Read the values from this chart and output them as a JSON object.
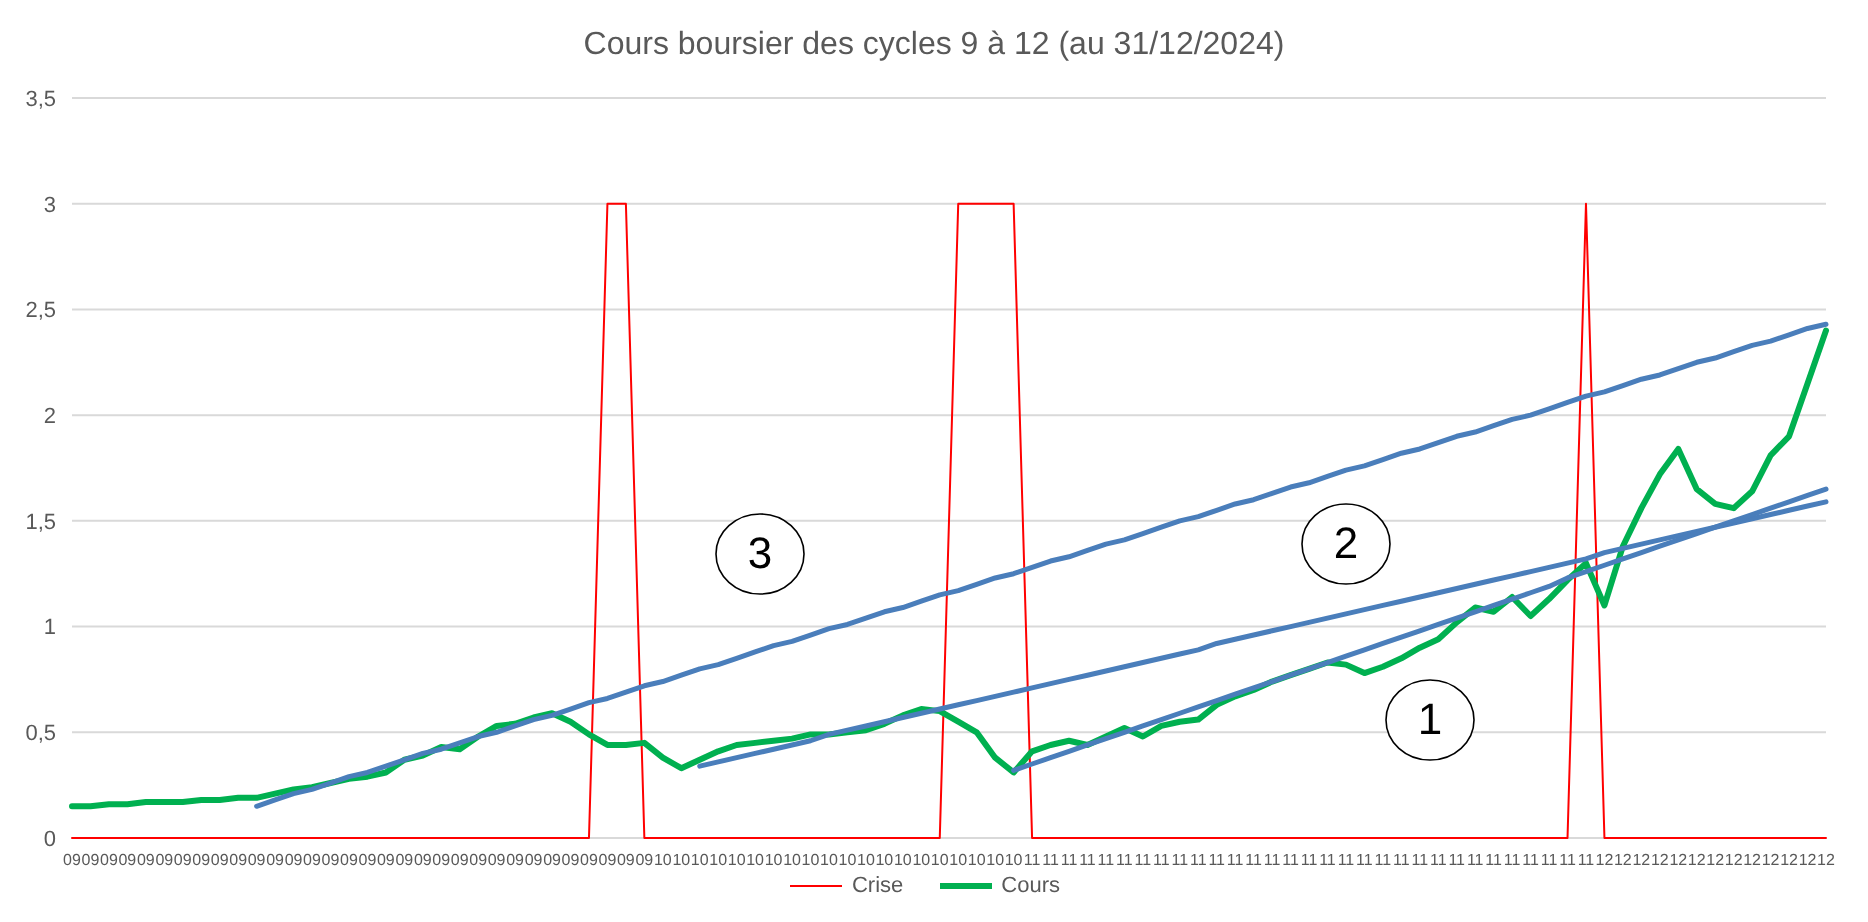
{
  "chart_data": {
    "type": "line",
    "title": "Cours boursier des cycles 9 à 12 (au 31/12/2024)",
    "categories": [
      "09",
      "09",
      "09",
      "09",
      "09",
      "09",
      "09",
      "09",
      "09",
      "09",
      "09",
      "09",
      "09",
      "09",
      "09",
      "09",
      "09",
      "09",
      "09",
      "09",
      "09",
      "09",
      "09",
      "09",
      "09",
      "09",
      "09",
      "09",
      "09",
      "09",
      "09",
      "09",
      "10",
      "10",
      "10",
      "10",
      "10",
      "10",
      "10",
      "10",
      "10",
      "10",
      "10",
      "10",
      "10",
      "10",
      "10",
      "10",
      "10",
      "10",
      "10",
      "10",
      "11",
      "11",
      "11",
      "11",
      "11",
      "11",
      "11",
      "11",
      "11",
      "11",
      "11",
      "11",
      "11",
      "11",
      "11",
      "11",
      "11",
      "11",
      "11",
      "11",
      "11",
      "11",
      "11",
      "11",
      "11",
      "11",
      "11",
      "11",
      "11",
      "11",
      "11",
      "12",
      "12",
      "12",
      "12",
      "12",
      "12",
      "12",
      "12",
      "12",
      "12",
      "12",
      "12",
      "12"
    ],
    "ylim": [
      0,
      3.5
    ],
    "yticks": [
      0,
      {
        "value": 0.5,
        "label": "0,5"
      },
      1,
      {
        "value": 1.5,
        "label": "1,5"
      },
      2,
      {
        "value": 2.5,
        "label": "2,5"
      },
      3,
      {
        "value": 3.5,
        "label": "3,5"
      }
    ],
    "grid": "y",
    "legend": "bottom",
    "marker": "none",
    "line_style": "solid",
    "series": [
      {
        "name": "Crise",
        "color": "#ff0000",
        "values": [
          0,
          0,
          0,
          0,
          0,
          0,
          0,
          0,
          0,
          0,
          0,
          0,
          0,
          0,
          0,
          0,
          0,
          0,
          0,
          0,
          0,
          0,
          0,
          0,
          0,
          0,
          0,
          0,
          0,
          3,
          3,
          0,
          0,
          0,
          0,
          0,
          0,
          0,
          0,
          0,
          0,
          0,
          0,
          0,
          0,
          0,
          0,
          0,
          3,
          3,
          3,
          3,
          0,
          0,
          0,
          0,
          0,
          0,
          0,
          0,
          0,
          0,
          0,
          0,
          0,
          0,
          0,
          0,
          0,
          0,
          0,
          0,
          0,
          0,
          0,
          0,
          0,
          0,
          0,
          0,
          0,
          0,
          3,
          0,
          0,
          0,
          0,
          0,
          0,
          0,
          0,
          0,
          0,
          0,
          0,
          0
        ]
      },
      {
        "name": "Cours",
        "color": "#00b050",
        "values": [
          0.15,
          0.15,
          0.16,
          0.16,
          0.17,
          0.17,
          0.17,
          0.18,
          0.18,
          0.19,
          0.19,
          0.21,
          0.23,
          0.24,
          0.26,
          0.28,
          0.29,
          0.31,
          0.37,
          0.39,
          0.43,
          0.42,
          0.48,
          0.53,
          0.54,
          0.57,
          0.59,
          0.55,
          0.49,
          0.44,
          0.44,
          0.45,
          0.38,
          0.33,
          0.37,
          0.41,
          0.44,
          0.45,
          0.46,
          0.47,
          0.49,
          0.49,
          0.5,
          0.51,
          0.54,
          0.58,
          0.61,
          0.6,
          0.55,
          0.5,
          0.38,
          0.31,
          0.41,
          0.44,
          0.46,
          0.44,
          0.48,
          0.52,
          0.48,
          0.53,
          0.55,
          0.56,
          0.63,
          0.67,
          0.7,
          0.74,
          0.77,
          0.8,
          0.83,
          0.82,
          0.78,
          0.81,
          0.85,
          0.9,
          0.94,
          1.02,
          1.09,
          1.07,
          1.14,
          1.05,
          1.13,
          1.22,
          1.3,
          1.1,
          1.38,
          1.56,
          1.72,
          1.84,
          1.65,
          1.58,
          1.56,
          1.64,
          1.81,
          1.9,
          2.15,
          2.4
        ]
      },
      {
        "color": "#4a7ebb",
        "values": [
          null,
          null,
          null,
          null,
          null,
          null,
          null,
          null,
          null,
          null,
          0.15,
          0.18,
          0.21,
          0.23,
          0.26,
          0.29,
          0.31,
          0.34,
          0.37,
          0.4,
          0.42,
          0.45,
          0.48,
          0.5,
          0.53,
          0.56,
          0.58,
          0.61,
          0.64,
          0.66,
          0.69,
          0.72,
          0.74,
          0.77,
          0.8,
          0.82,
          0.85,
          0.88,
          0.91,
          0.93,
          0.96,
          0.99,
          1.01,
          1.04,
          1.07,
          1.09,
          1.12,
          1.15,
          1.17,
          1.2,
          1.23,
          1.25,
          1.28,
          1.31,
          1.33,
          1.36,
          1.39,
          1.41,
          1.44,
          1.47,
          1.5,
          1.52,
          1.55,
          1.58,
          1.6,
          1.63,
          1.66,
          1.68,
          1.71,
          1.74,
          1.76,
          1.79,
          1.82,
          1.84,
          1.87,
          1.9,
          1.92,
          1.95,
          1.98,
          2.0,
          2.03,
          2.06,
          2.09,
          2.11,
          2.14,
          2.17,
          2.19,
          2.22,
          2.25,
          2.27,
          2.3,
          2.33,
          2.35,
          2.38,
          2.41,
          2.43
        ]
      },
      {
        "color": "#4a7ebb",
        "values": [
          null,
          null,
          null,
          null,
          null,
          null,
          null,
          null,
          null,
          null,
          null,
          null,
          null,
          null,
          null,
          null,
          null,
          null,
          null,
          null,
          null,
          null,
          null,
          null,
          null,
          null,
          null,
          null,
          null,
          null,
          null,
          null,
          null,
          null,
          0.34,
          0.36,
          0.38,
          0.4,
          0.42,
          0.44,
          0.46,
          0.49,
          0.51,
          0.53,
          0.55,
          0.57,
          0.59,
          0.61,
          0.63,
          0.65,
          0.67,
          0.69,
          0.71,
          0.73,
          0.75,
          0.77,
          0.79,
          0.81,
          0.83,
          0.85,
          0.87,
          0.89,
          0.92,
          0.94,
          0.96,
          0.98,
          1.0,
          1.02,
          1.04,
          1.06,
          1.08,
          1.1,
          1.12,
          1.14,
          1.16,
          1.18,
          1.2,
          1.22,
          1.24,
          1.26,
          1.28,
          1.3,
          1.32,
          1.35,
          1.37,
          1.39,
          1.41,
          1.43,
          1.45,
          1.47,
          1.49,
          1.51,
          1.53,
          1.55,
          1.57,
          1.59
        ]
      },
      {
        "color": "#4a7ebb",
        "values": [
          null,
          null,
          null,
          null,
          null,
          null,
          null,
          null,
          null,
          null,
          null,
          null,
          null,
          null,
          null,
          null,
          null,
          null,
          null,
          null,
          null,
          null,
          null,
          null,
          null,
          null,
          null,
          null,
          null,
          null,
          null,
          null,
          null,
          null,
          null,
          null,
          null,
          null,
          null,
          null,
          null,
          null,
          null,
          null,
          null,
          null,
          null,
          null,
          null,
          null,
          null,
          0.32,
          0.35,
          0.38,
          0.41,
          0.44,
          0.47,
          0.5,
          0.53,
          0.56,
          0.59,
          0.62,
          0.65,
          0.68,
          0.71,
          0.74,
          0.77,
          0.8,
          0.83,
          0.86,
          0.89,
          0.92,
          0.95,
          0.98,
          1.01,
          1.04,
          1.07,
          1.1,
          1.13,
          1.16,
          1.19,
          1.23,
          1.26,
          1.29,
          1.32,
          1.35,
          1.38,
          1.41,
          1.44,
          1.47,
          1.5,
          1.53,
          1.56,
          1.59,
          1.62,
          1.65
        ]
      }
    ],
    "annotations": [
      "3",
      "2",
      "1"
    ]
  }
}
